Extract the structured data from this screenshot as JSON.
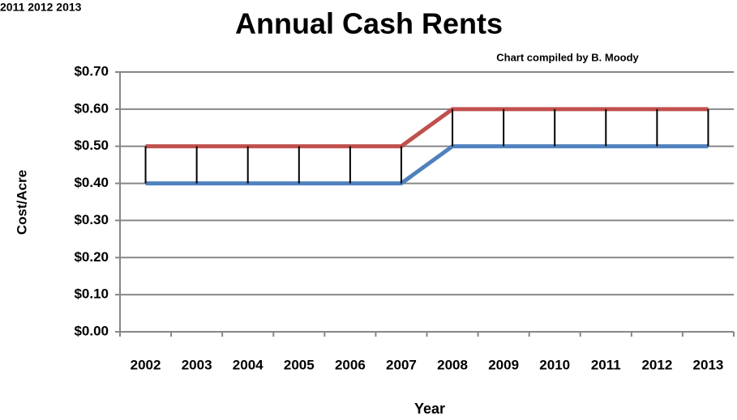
{
  "chart_data": {
    "type": "line",
    "title": "Annual Cash Rents",
    "subtitle": "Chart compiled by B. Moody",
    "annotations": [
      "2011 2012 2013"
    ],
    "x_label": "Year",
    "y_label": "Cost/Acre",
    "categories": [
      "2002",
      "2003",
      "2004",
      "2005",
      "2006",
      "2007",
      "2008",
      "2009",
      "2010",
      "2011",
      "2012",
      "2013"
    ],
    "series": [
      {
        "color": "#c0504d",
        "values": [
          0.5,
          0.5,
          0.5,
          0.5,
          0.5,
          0.5,
          0.6,
          0.6,
          0.6,
          0.6,
          0.6,
          0.6
        ]
      },
      {
        "color": "#4f81bd",
        "values": [
          0.4,
          0.4,
          0.4,
          0.4,
          0.4,
          0.4,
          0.5,
          0.5,
          0.5,
          0.5,
          0.5,
          0.5
        ]
      }
    ],
    "high_low_lines": true,
    "ylim": [
      0,
      0.7
    ],
    "yticks": [
      {
        "value": 0,
        "label": "$0.00"
      },
      {
        "value": 0.1,
        "label": "$0.10"
      },
      {
        "value": 0.2,
        "label": "$0.20"
      },
      {
        "value": 0.3,
        "label": "$0.30"
      },
      {
        "value": 0.4,
        "label": "$0.40"
      },
      {
        "value": 0.5,
        "label": "$0.50"
      },
      {
        "value": 0.6,
        "label": "$0.60"
      },
      {
        "value": 0.7,
        "label": "$0.70"
      }
    ],
    "grid": true
  }
}
